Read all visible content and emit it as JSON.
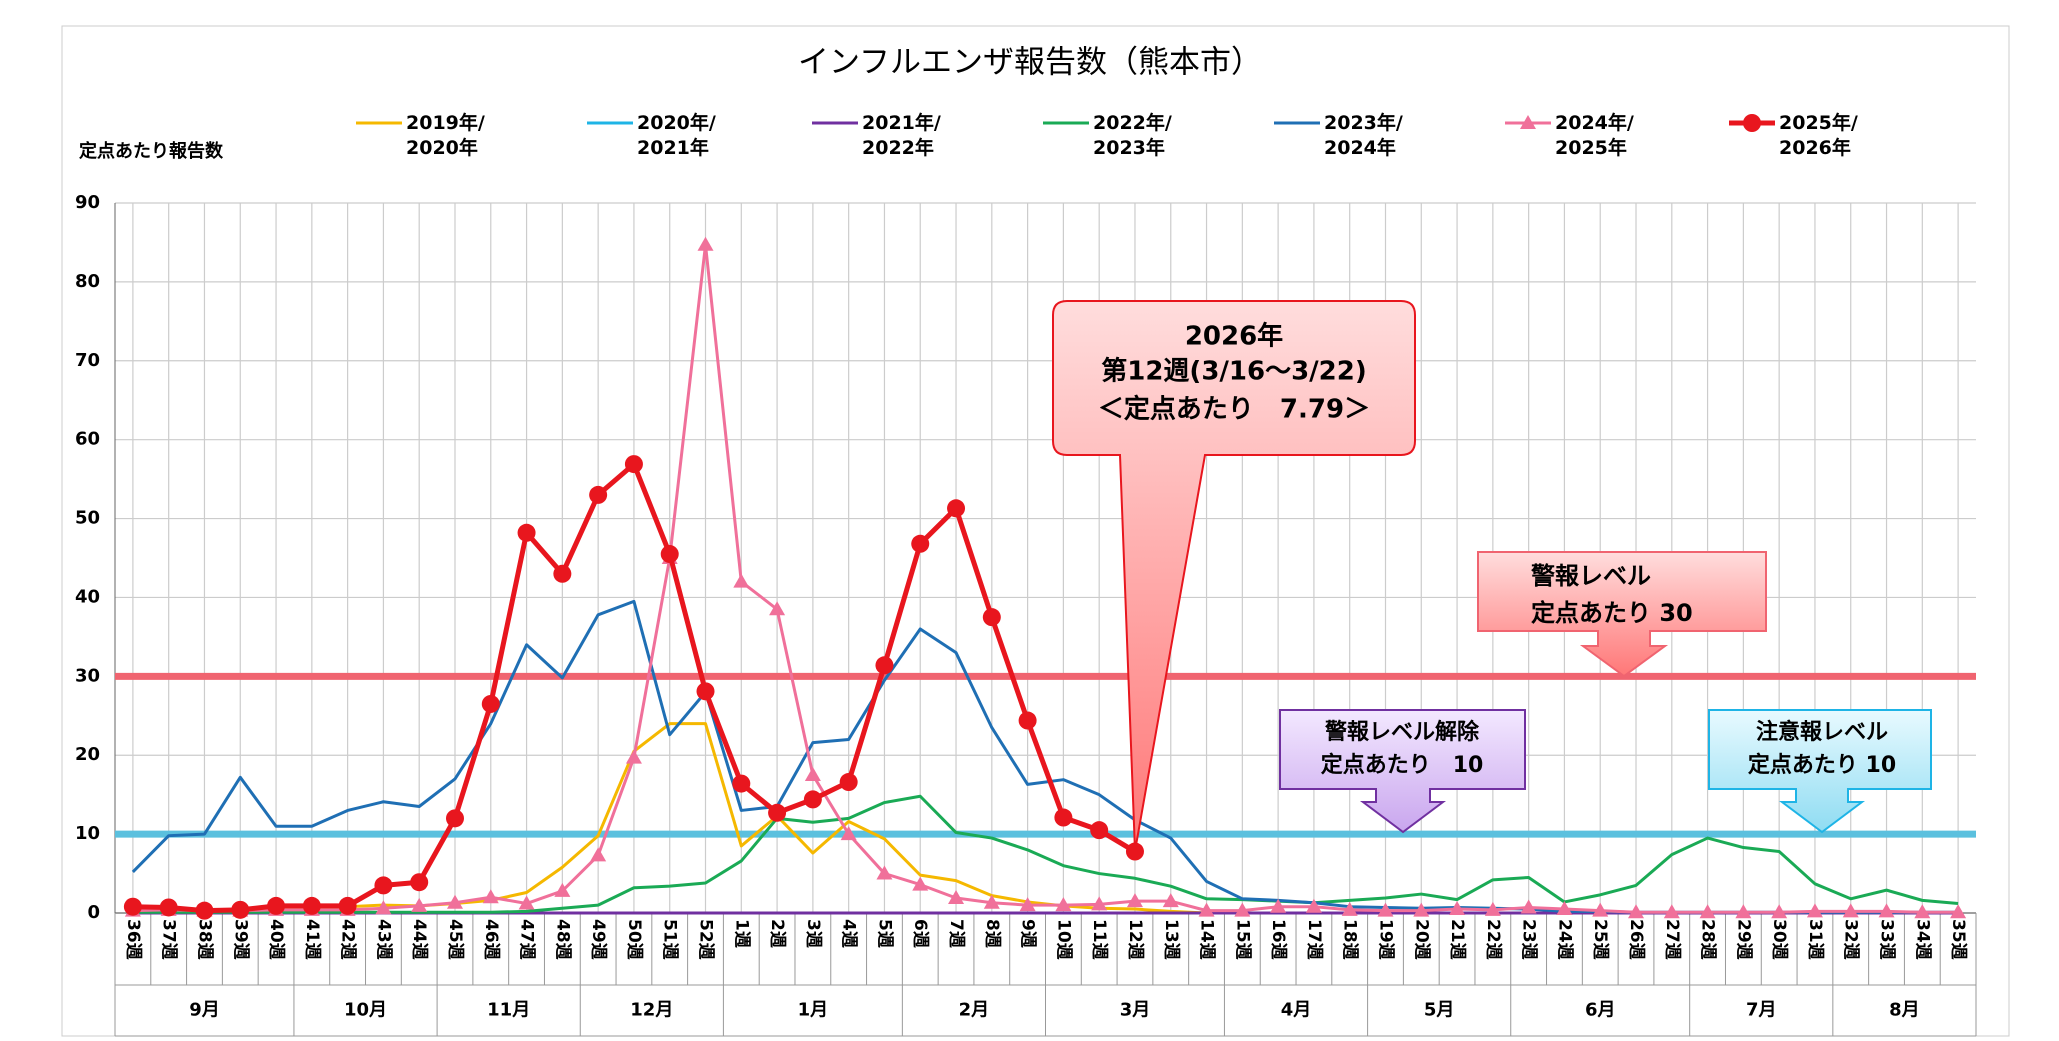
{
  "chart_data": {
    "type": "line",
    "title": "インフルエンザ報告数（熊本市）",
    "y_label": "定点あたり報告数",
    "categories": [
      "36週",
      "37週",
      "38週",
      "39週",
      "40週",
      "41週",
      "42週",
      "43週",
      "44週",
      "45週",
      "46週",
      "47週",
      "48週",
      "49週",
      "50週",
      "51週",
      "52週",
      "1週",
      "2週",
      "3週",
      "4週",
      "5週",
      "6週",
      "7週",
      "8週",
      "9週",
      "10週",
      "11週",
      "12週",
      "13週",
      "14週",
      "15週",
      "16週",
      "17週",
      "18週",
      "19週",
      "20週",
      "21週",
      "22週",
      "23週",
      "24週",
      "25週",
      "26週",
      "27週",
      "28週",
      "29週",
      "30週",
      "31週",
      "32週",
      "33週",
      "34週",
      "35週"
    ],
    "months": [
      "9月",
      null,
      null,
      null,
      null,
      "10月",
      null,
      null,
      null,
      "11月",
      null,
      null,
      null,
      "12月",
      null,
      null,
      null,
      "1月",
      null,
      null,
      null,
      null,
      "2月",
      null,
      null,
      null,
      "3月",
      null,
      null,
      null,
      null,
      "4月",
      null,
      null,
      null,
      "5月",
      null,
      null,
      null,
      "6月",
      null,
      null,
      null,
      null,
      "7月",
      null,
      null,
      null,
      "8月",
      null,
      null,
      null
    ],
    "ylim": [
      0,
      90
    ],
    "yticks": [
      0,
      10,
      20,
      30,
      40,
      50,
      60,
      70,
      80,
      90
    ],
    "grid": true,
    "series": [
      {
        "name": "2019年/2020年",
        "color": "#f5b800",
        "marker": "none",
        "values": [
          0.3,
          0.3,
          0.3,
          0.4,
          0.5,
          0.6,
          0.8,
          1,
          0.9,
          1.2,
          1.6,
          2.6,
          5.8,
          9.8,
          20.5,
          24,
          24,
          8.5,
          12.3,
          7.6,
          11.6,
          9.4,
          4.8,
          4.1,
          2.2,
          1.4,
          0.9,
          0.6,
          0.5,
          0.2,
          0,
          0,
          0,
          0,
          0,
          0,
          0,
          0,
          0,
          0,
          0,
          0,
          0,
          0,
          0,
          0,
          0,
          0,
          0,
          0,
          0,
          0
        ]
      },
      {
        "name": "2020年/2021年",
        "color": "#1eb4e6",
        "marker": "none",
        "values": [
          0,
          0,
          0,
          0,
          0,
          0,
          0,
          0,
          0,
          0,
          0,
          0,
          0,
          0,
          0,
          0,
          0,
          0,
          0,
          0,
          0,
          0,
          0,
          0,
          0,
          0,
          0,
          0,
          0,
          0,
          0,
          0,
          0,
          0,
          0,
          0,
          0,
          0,
          0,
          0,
          0,
          0,
          0,
          0,
          0,
          0,
          0,
          0,
          0,
          0,
          0,
          0
        ]
      },
      {
        "name": "2021年/2022年",
        "color": "#7030a0",
        "marker": "none",
        "values": [
          0,
          0,
          0,
          0,
          0,
          0,
          0,
          0,
          0,
          0,
          0,
          0,
          0,
          0,
          0,
          0,
          0,
          0,
          0,
          0,
          0,
          0,
          0,
          0,
          0,
          0,
          0,
          0,
          0,
          0,
          0,
          0,
          0,
          0,
          0,
          0,
          0,
          0,
          0,
          0,
          0,
          0,
          0,
          0,
          0,
          0,
          0,
          0,
          0,
          0,
          0,
          0
        ]
      },
      {
        "name": "2022年/2023年",
        "color": "#1aaa55",
        "marker": "none",
        "values": [
          0.1,
          0.1,
          0.1,
          0.1,
          0.1,
          0.1,
          0.1,
          0.1,
          0.1,
          0.1,
          0.1,
          0.2,
          0.6,
          1,
          3.2,
          3.4,
          3.8,
          6.6,
          12,
          11.5,
          12,
          14,
          14.8,
          10.2,
          9.5,
          8,
          6,
          5,
          4.4,
          3.4,
          1.8,
          1.7,
          1.5,
          1.3,
          1.6,
          1.9,
          2.4,
          1.7,
          4.2,
          4.5,
          1.4,
          2.3,
          3.5,
          7.4,
          9.5,
          8.3,
          7.8,
          3.7,
          1.8,
          2.9,
          1.6,
          1.2
        ]
      },
      {
        "name": "2023年/2024年",
        "color": "#1f6fb4",
        "marker": "none",
        "values": [
          5.2,
          9.8,
          10,
          17.2,
          11,
          11,
          13,
          14.1,
          13.5,
          17,
          24,
          34,
          29.8,
          37.8,
          39.5,
          22.6,
          28,
          13,
          13.5,
          21.6,
          22,
          29.5,
          36,
          33,
          23.5,
          16.3,
          16.9,
          15,
          11.8,
          9.5,
          4,
          1.8,
          1.6,
          1.3,
          0.8,
          0.7,
          0.6,
          0.7,
          0.6,
          0.5,
          0.2,
          0.2,
          0.1,
          0.1,
          0.1,
          0.1,
          0.1,
          0.1,
          0.1,
          0.1,
          0.1,
          0.1
        ]
      },
      {
        "name": "2024年/2025年",
        "color": "#f0709a",
        "marker": "triangle",
        "values": [
          0.3,
          0.4,
          0.3,
          0.3,
          0.4,
          0.4,
          0.4,
          0.6,
          0.9,
          1.3,
          2,
          1.2,
          2.8,
          7.3,
          19.7,
          45,
          84.7,
          42,
          38.5,
          17.5,
          10,
          5,
          3.6,
          1.9,
          1.3,
          1,
          1,
          1.1,
          1.5,
          1.5,
          0.3,
          0.3,
          0.8,
          0.8,
          0.4,
          0.3,
          0.3,
          0.5,
          0.4,
          0.7,
          0.5,
          0.3,
          0.1,
          0.1,
          0.1,
          0.1,
          0.1,
          0.2,
          0.2,
          0.2,
          0.1,
          0.1
        ]
      },
      {
        "name": "2025年/2026年",
        "color": "#e8161e",
        "marker": "circle",
        "values": [
          0.8,
          0.7,
          0.3,
          0.4,
          0.9,
          0.9,
          0.9,
          3.5,
          3.9,
          12,
          26.5,
          48.2,
          43,
          53,
          56.9,
          45.5,
          28.1,
          16.4,
          12.7,
          14.4,
          16.6,
          31.4,
          46.8,
          51.3,
          37.5,
          24.4,
          12.1,
          10.5,
          7.79,
          null,
          null,
          null,
          null,
          null,
          null,
          null,
          null,
          null,
          null,
          null,
          null,
          null,
          null,
          null,
          null,
          null,
          null,
          null,
          null,
          null,
          null,
          null
        ]
      }
    ],
    "reference_lines": [
      {
        "value": 30,
        "color": "#f06470"
      },
      {
        "value": 10,
        "color": "#5bc0de"
      }
    ],
    "annotations": [
      {
        "lines": [
          "2026年",
          "第12週(3/16～3/22)",
          "＜定点あたり　7.79＞"
        ]
      },
      {
        "lines": [
          "警報レベル",
          "定点あたり 30"
        ]
      },
      {
        "lines": [
          "警報レベル解除",
          "定点あたり　10"
        ]
      },
      {
        "lines": [
          "注意報レベル",
          "定点あたり 10"
        ]
      }
    ]
  }
}
